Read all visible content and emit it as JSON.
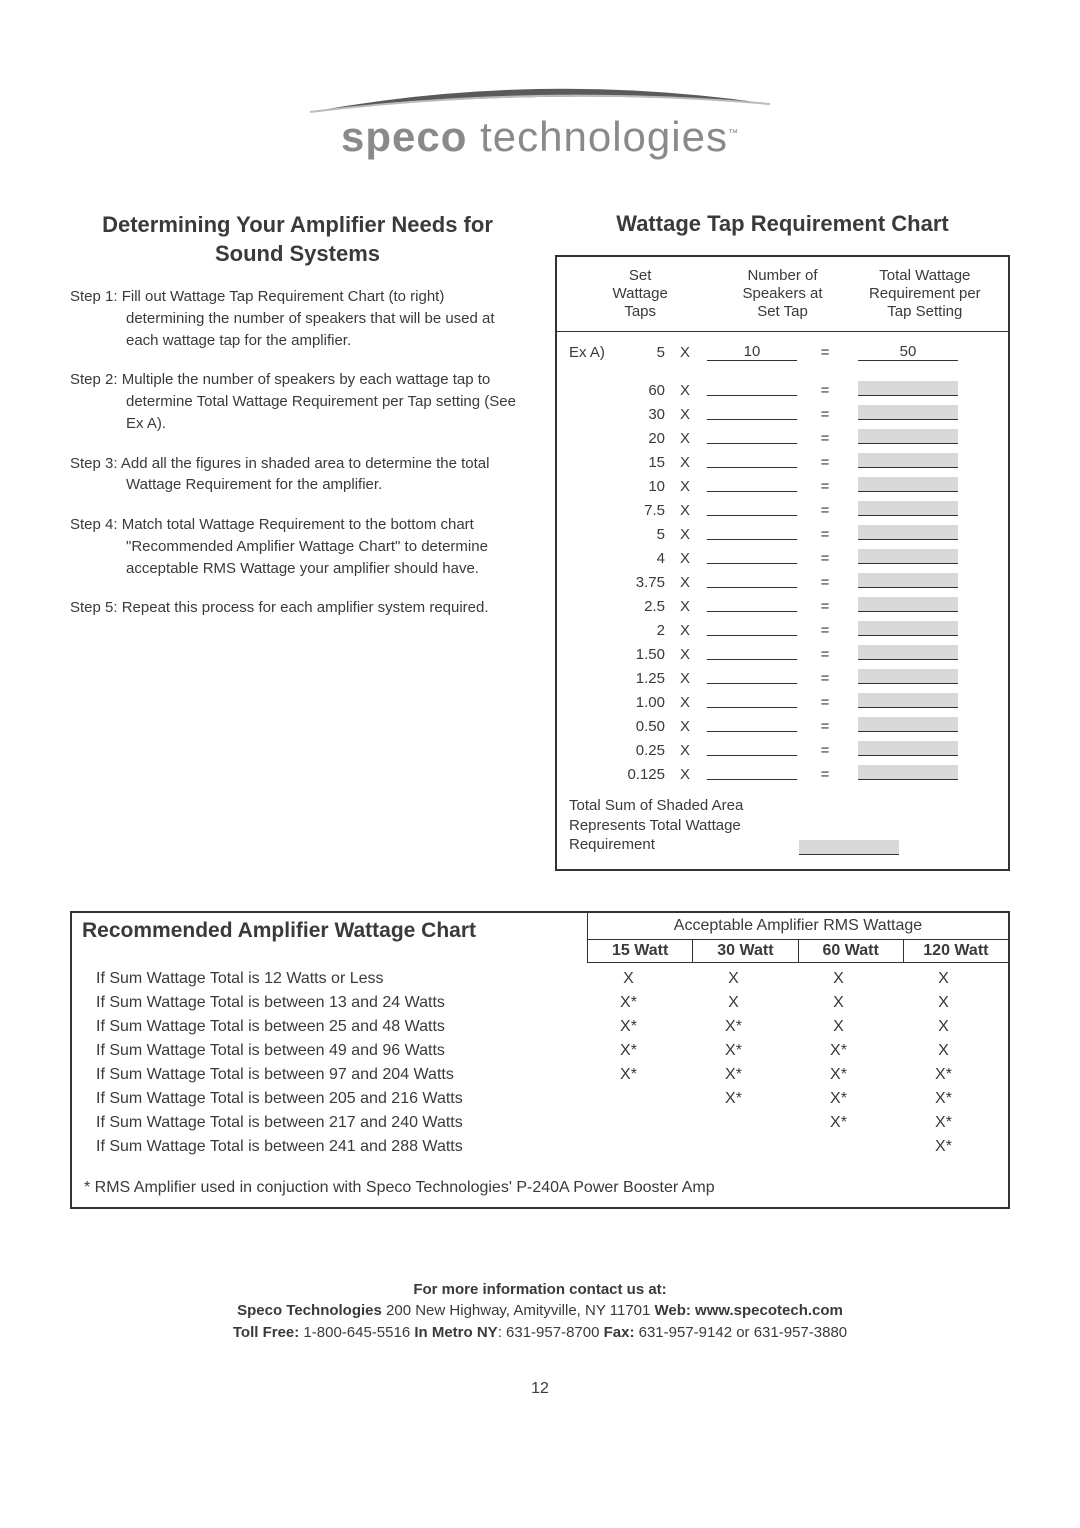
{
  "logo": {
    "brand_bold": "speco",
    "brand_light": " technologies",
    "tm": "™"
  },
  "left": {
    "title": "Determining Your Amplifier Needs for Sound Systems",
    "steps": [
      {
        "label": "Step 1:",
        "text": "Fill out Wattage Tap Requirement Chart (to right) determining the number of speakers that will be used at each wattage tap for the amplifier."
      },
      {
        "label": "Step 2:",
        "text": "Multiple the number of speakers by each wattage tap to determine Total Wattage Requirement per Tap setting (See Ex A)."
      },
      {
        "label": "Step 3:",
        "text": "Add all the figures in shaded area to determine the total Wattage Requirement for the amplifier."
      },
      {
        "label": "Step 4:",
        "text": "Match total Wattage Requirement to the bottom chart \"Recommended Amplifier Wattage Chart\" to determine acceptable RMS Wattage your amplifier should have."
      },
      {
        "label": "Step 5:",
        "text": "Repeat this process for each amplifier system required."
      }
    ]
  },
  "right": {
    "title": "Wattage Tap Requirement Chart",
    "headers": [
      "Set\nWattage\nTaps",
      "Number of\nSpeakers at\nSet Tap",
      "Total Wattage\nRequirement per\nTap Setting"
    ],
    "example_label": "Ex A)",
    "example": {
      "tap": "5",
      "speakers": "10",
      "total": "50"
    },
    "taps": [
      "60",
      "30",
      "20",
      "15",
      "10",
      "7.5",
      "5",
      "4",
      "3.75",
      "2.5",
      "2",
      "1.50",
      "1.25",
      "1.00",
      "0.50",
      "0.25",
      "0.125"
    ],
    "footer": "Total Sum of Shaded Area Represents Total Wattage Requirement"
  },
  "rec": {
    "title": "Recommended Amplifier Wattage Chart",
    "rms_title": "Acceptable Amplifier RMS Wattage",
    "cols": [
      "15 Watt",
      "30 Watt",
      "60 Watt",
      "120 Watt"
    ],
    "rows": [
      {
        "label": "If Sum Wattage Total is 12 Watts or Less",
        "cells": [
          "X",
          "X",
          "X",
          "X"
        ]
      },
      {
        "label": "If Sum Wattage Total is between 13 and 24 Watts",
        "cells": [
          "X*",
          "X",
          "X",
          "X"
        ]
      },
      {
        "label": "If Sum Wattage Total is between 25 and 48 Watts",
        "cells": [
          "X*",
          "X*",
          "X",
          "X"
        ]
      },
      {
        "label": "If Sum Wattage Total is between 49 and 96 Watts",
        "cells": [
          "X*",
          "X*",
          "X*",
          "X"
        ]
      },
      {
        "label": "If Sum Wattage Total is between 97 and 204 Watts",
        "cells": [
          "X*",
          "X*",
          "X*",
          "X*"
        ]
      },
      {
        "label": "If Sum Wattage Total is between 205 and 216 Watts",
        "cells": [
          "",
          "X*",
          "X*",
          "X*"
        ]
      },
      {
        "label": "If Sum Wattage Total is between 217 and 240 Watts",
        "cells": [
          "",
          "",
          "X*",
          "X*"
        ]
      },
      {
        "label": "If Sum Wattage Total is between 241 and 288 Watts",
        "cells": [
          "",
          "",
          "",
          "X*"
        ]
      }
    ],
    "footnote": "* RMS Amplifier used in conjuction with Speco Technologies' P-240A Power Booster Amp"
  },
  "contact": {
    "lead": "For more information contact us at:",
    "line1a": "Speco Technologies ",
    "line1b": "200 New Highway, Amityville, NY 11701 ",
    "line1c": "Web: www.specotech.com",
    "line2a": "Toll Free: ",
    "line2b": "1-800-645-5516 ",
    "line2c": "In Metro NY",
    "line2d": ": 631-957-8700 ",
    "line2e": "Fax: ",
    "line2f": "631-957-9142 or 631-957-3880"
  },
  "pagenum": "12"
}
